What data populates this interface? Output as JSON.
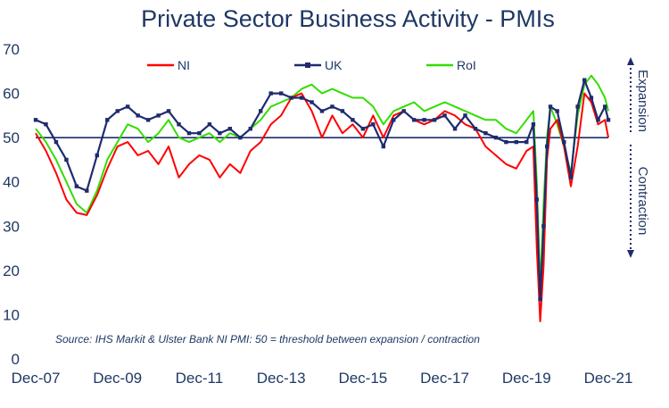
{
  "chart_data": {
    "type": "line",
    "title": "Private Sector Business Activity - PMIs",
    "source_note": "Source: IHS Markit & Ulster Bank NI PMI: 50 = threshold between expansion / contraction",
    "ylim": [
      0,
      70
    ],
    "y_ticks": [
      "0",
      "10",
      "20",
      "30",
      "40",
      "50",
      "60",
      "70"
    ],
    "x_ticks": [
      "Dec-07",
      "Dec-09",
      "Dec-11",
      "Dec-13",
      "Dec-15",
      "Dec-17",
      "Dec-19",
      "Dec-21"
    ],
    "threshold": 50,
    "side_labels": {
      "upper": "Expansion",
      "lower": "Contraction"
    },
    "legend_position": "top",
    "series": [
      {
        "name": "NI",
        "color": "#ff0000",
        "points": [
          [
            "2007-12",
            51
          ],
          [
            "2008-03",
            47
          ],
          [
            "2008-06",
            42
          ],
          [
            "2008-09",
            36
          ],
          [
            "2008-12",
            33
          ],
          [
            "2009-03",
            32.5
          ],
          [
            "2009-06",
            37
          ],
          [
            "2009-09",
            43
          ],
          [
            "2009-12",
            48
          ],
          [
            "2010-03",
            49
          ],
          [
            "2010-06",
            46
          ],
          [
            "2010-09",
            47
          ],
          [
            "2010-12",
            44
          ],
          [
            "2011-03",
            48
          ],
          [
            "2011-06",
            41
          ],
          [
            "2011-09",
            44
          ],
          [
            "2011-12",
            46
          ],
          [
            "2012-03",
            45
          ],
          [
            "2012-06",
            41
          ],
          [
            "2012-09",
            44
          ],
          [
            "2012-12",
            42
          ],
          [
            "2013-03",
            47
          ],
          [
            "2013-06",
            49
          ],
          [
            "2013-09",
            53
          ],
          [
            "2013-12",
            55
          ],
          [
            "2014-03",
            59
          ],
          [
            "2014-06",
            60
          ],
          [
            "2014-09",
            56
          ],
          [
            "2014-12",
            50
          ],
          [
            "2015-03",
            55
          ],
          [
            "2015-06",
            51
          ],
          [
            "2015-09",
            53
          ],
          [
            "2015-12",
            50
          ],
          [
            "2016-03",
            55
          ],
          [
            "2016-06",
            50
          ],
          [
            "2016-09",
            55
          ],
          [
            "2016-12",
            56
          ],
          [
            "2017-03",
            54
          ],
          [
            "2017-06",
            53
          ],
          [
            "2017-09",
            54
          ],
          [
            "2017-12",
            56
          ],
          [
            "2018-03",
            55
          ],
          [
            "2018-06",
            53
          ],
          [
            "2018-09",
            52
          ],
          [
            "2018-12",
            48
          ],
          [
            "2019-03",
            46
          ],
          [
            "2019-06",
            44
          ],
          [
            "2019-09",
            43
          ],
          [
            "2019-12",
            47
          ],
          [
            "2020-02",
            48
          ],
          [
            "2020-03",
            25
          ],
          [
            "2020-04",
            8.5
          ],
          [
            "2020-05",
            21
          ],
          [
            "2020-06",
            45
          ],
          [
            "2020-07",
            52
          ],
          [
            "2020-09",
            54
          ],
          [
            "2020-11",
            48
          ],
          [
            "2021-01",
            39
          ],
          [
            "2021-03",
            48
          ],
          [
            "2021-05",
            60
          ],
          [
            "2021-07",
            58
          ],
          [
            "2021-09",
            53
          ],
          [
            "2021-11",
            54
          ],
          [
            "2021-12",
            50
          ]
        ]
      },
      {
        "name": "UK",
        "color": "#1f2b6e",
        "points": [
          [
            "2007-12",
            54
          ],
          [
            "2008-03",
            53
          ],
          [
            "2008-06",
            49
          ],
          [
            "2008-09",
            45
          ],
          [
            "2008-12",
            39
          ],
          [
            "2009-03",
            38
          ],
          [
            "2009-06",
            46
          ],
          [
            "2009-09",
            54
          ],
          [
            "2009-12",
            56
          ],
          [
            "2010-03",
            57
          ],
          [
            "2010-06",
            55
          ],
          [
            "2010-09",
            54
          ],
          [
            "2010-12",
            55
          ],
          [
            "2011-03",
            56
          ],
          [
            "2011-06",
            53
          ],
          [
            "2011-09",
            51
          ],
          [
            "2011-12",
            51
          ],
          [
            "2012-03",
            53
          ],
          [
            "2012-06",
            51
          ],
          [
            "2012-09",
            52
          ],
          [
            "2012-12",
            50
          ],
          [
            "2013-03",
            52
          ],
          [
            "2013-06",
            56
          ],
          [
            "2013-09",
            60
          ],
          [
            "2013-12",
            60
          ],
          [
            "2014-03",
            59
          ],
          [
            "2014-06",
            59
          ],
          [
            "2014-09",
            58
          ],
          [
            "2014-12",
            56
          ],
          [
            "2015-03",
            57
          ],
          [
            "2015-06",
            56
          ],
          [
            "2015-09",
            54
          ],
          [
            "2015-12",
            52
          ],
          [
            "2016-03",
            53
          ],
          [
            "2016-06",
            48
          ],
          [
            "2016-09",
            54
          ],
          [
            "2016-12",
            56
          ],
          [
            "2017-03",
            54
          ],
          [
            "2017-06",
            54
          ],
          [
            "2017-09",
            54
          ],
          [
            "2017-12",
            55
          ],
          [
            "2018-03",
            52
          ],
          [
            "2018-06",
            55
          ],
          [
            "2018-09",
            52
          ],
          [
            "2018-12",
            51
          ],
          [
            "2019-03",
            50
          ],
          [
            "2019-06",
            49
          ],
          [
            "2019-09",
            49
          ],
          [
            "2019-12",
            49
          ],
          [
            "2020-02",
            53
          ],
          [
            "2020-03",
            36
          ],
          [
            "2020-04",
            13.5
          ],
          [
            "2020-05",
            30
          ],
          [
            "2020-06",
            48
          ],
          [
            "2020-07",
            57
          ],
          [
            "2020-09",
            56
          ],
          [
            "2020-11",
            49
          ],
          [
            "2021-01",
            41
          ],
          [
            "2021-03",
            57
          ],
          [
            "2021-05",
            63
          ],
          [
            "2021-07",
            59
          ],
          [
            "2021-09",
            54
          ],
          [
            "2021-11",
            57
          ],
          [
            "2021-12",
            54
          ]
        ]
      },
      {
        "name": "RoI",
        "color": "#33dd00",
        "points": [
          [
            "2007-12",
            52
          ],
          [
            "2008-03",
            49
          ],
          [
            "2008-06",
            45
          ],
          [
            "2008-09",
            40
          ],
          [
            "2008-12",
            35
          ],
          [
            "2009-03",
            33
          ],
          [
            "2009-06",
            38
          ],
          [
            "2009-09",
            45
          ],
          [
            "2009-12",
            49
          ],
          [
            "2010-03",
            53
          ],
          [
            "2010-06",
            52
          ],
          [
            "2010-09",
            49
          ],
          [
            "2010-12",
            51
          ],
          [
            "2011-03",
            54
          ],
          [
            "2011-06",
            50
          ],
          [
            "2011-09",
            49
          ],
          [
            "2011-12",
            50
          ],
          [
            "2012-03",
            51
          ],
          [
            "2012-06",
            49
          ],
          [
            "2012-09",
            51
          ],
          [
            "2012-12",
            50
          ],
          [
            "2013-03",
            52
          ],
          [
            "2013-06",
            54
          ],
          [
            "2013-09",
            57
          ],
          [
            "2013-12",
            58
          ],
          [
            "2014-03",
            59
          ],
          [
            "2014-06",
            61
          ],
          [
            "2014-09",
            62
          ],
          [
            "2014-12",
            60
          ],
          [
            "2015-03",
            61
          ],
          [
            "2015-06",
            60
          ],
          [
            "2015-09",
            59
          ],
          [
            "2015-12",
            59
          ],
          [
            "2016-03",
            57
          ],
          [
            "2016-06",
            53
          ],
          [
            "2016-09",
            56
          ],
          [
            "2016-12",
            57
          ],
          [
            "2017-03",
            58
          ],
          [
            "2017-06",
            56
          ],
          [
            "2017-09",
            57
          ],
          [
            "2017-12",
            58
          ],
          [
            "2018-03",
            57
          ],
          [
            "2018-06",
            56
          ],
          [
            "2018-09",
            55
          ],
          [
            "2018-12",
            54
          ],
          [
            "2019-03",
            54
          ],
          [
            "2019-06",
            52
          ],
          [
            "2019-09",
            51
          ],
          [
            "2019-12",
            54
          ],
          [
            "2020-02",
            56
          ],
          [
            "2020-03",
            40
          ],
          [
            "2020-04",
            16
          ],
          [
            "2020-05",
            35
          ],
          [
            "2020-06",
            50
          ],
          [
            "2020-07",
            57
          ],
          [
            "2020-09",
            53
          ],
          [
            "2020-11",
            48
          ],
          [
            "2021-01",
            42
          ],
          [
            "2021-03",
            55
          ],
          [
            "2021-05",
            62
          ],
          [
            "2021-07",
            64
          ],
          [
            "2021-09",
            62
          ],
          [
            "2021-11",
            59
          ],
          [
            "2021-12",
            56
          ]
        ]
      }
    ]
  }
}
